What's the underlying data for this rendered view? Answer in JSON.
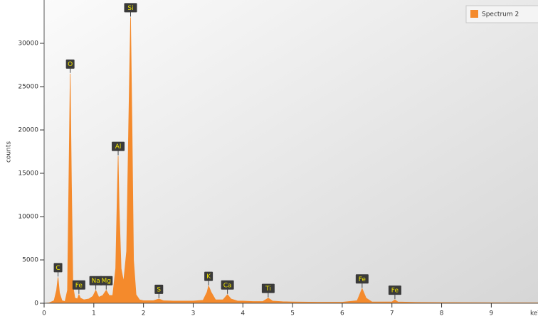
{
  "chart_data": {
    "type": "area",
    "y_label": "counts",
    "x_label": "keV",
    "xlim": [
      0,
      9.94
    ],
    "ylim": [
      0,
      35000
    ],
    "xticks": [
      0,
      1,
      2,
      3,
      4,
      5,
      6,
      7,
      8,
      9
    ],
    "yticks": [
      0,
      5000,
      10000,
      15000,
      20000,
      25000,
      30000
    ],
    "legend_position": "upper right",
    "series": [
      {
        "name": "Spectrum 2",
        "color": "#f48a2c",
        "x": [
          0.0,
          0.1,
          0.2,
          0.25,
          0.28,
          0.31,
          0.36,
          0.42,
          0.47,
          0.5,
          0.525,
          0.55,
          0.58,
          0.62,
          0.67,
          0.7,
          0.73,
          0.8,
          0.9,
          0.98,
          1.04,
          1.1,
          1.18,
          1.25,
          1.31,
          1.38,
          1.44,
          1.47,
          1.49,
          1.51,
          1.55,
          1.6,
          1.66,
          1.7,
          1.74,
          1.77,
          1.8,
          1.85,
          1.92,
          2.0,
          2.2,
          2.31,
          2.4,
          2.6,
          2.8,
          3.0,
          3.2,
          3.28,
          3.31,
          3.36,
          3.45,
          3.6,
          3.69,
          3.76,
          3.9,
          4.0,
          4.2,
          4.4,
          4.51,
          4.6,
          4.8,
          5.0,
          5.5,
          6.0,
          6.3,
          6.4,
          6.48,
          6.6,
          7.0,
          7.06,
          7.12,
          7.5,
          8.0,
          9.0,
          9.94
        ],
        "values": [
          0,
          50,
          300,
          1500,
          3000,
          1200,
          300,
          200,
          1500,
          15000,
          26500,
          14000,
          2000,
          600,
          500,
          1000,
          600,
          400,
          500,
          800,
          1500,
          700,
          900,
          1500,
          900,
          900,
          4000,
          12000,
          17000,
          11000,
          4000,
          2500,
          6000,
          20000,
          33000,
          20000,
          5000,
          1000,
          400,
          300,
          300,
          500,
          300,
          250,
          250,
          250,
          350,
          1300,
          2000,
          1300,
          400,
          400,
          1000,
          500,
          250,
          250,
          200,
          200,
          600,
          250,
          180,
          150,
          120,
          120,
          300,
          1700,
          600,
          150,
          150,
          400,
          150,
          100,
          80,
          60,
          50
        ]
      }
    ],
    "annotations": [
      {
        "label": "C",
        "x": 0.28,
        "y": 3000
      },
      {
        "label": "O",
        "x": 0.525,
        "y": 26500
      },
      {
        "label": "Fe",
        "x": 0.7,
        "y": 1000
      },
      {
        "label": "Na",
        "x": 1.04,
        "y": 1500
      },
      {
        "label": "Mg",
        "x": 1.25,
        "y": 1500
      },
      {
        "label": "Al",
        "x": 1.49,
        "y": 17000
      },
      {
        "label": "Si",
        "x": 1.74,
        "y": 33000
      },
      {
        "label": "S",
        "x": 2.31,
        "y": 500
      },
      {
        "label": "K",
        "x": 3.31,
        "y": 2000
      },
      {
        "label": "Ca",
        "x": 3.69,
        "y": 1000
      },
      {
        "label": "Ti",
        "x": 4.51,
        "y": 600
      },
      {
        "label": "Fe",
        "x": 6.4,
        "y": 1700
      },
      {
        "label": "Fe",
        "x": 7.06,
        "y": 400
      }
    ]
  }
}
